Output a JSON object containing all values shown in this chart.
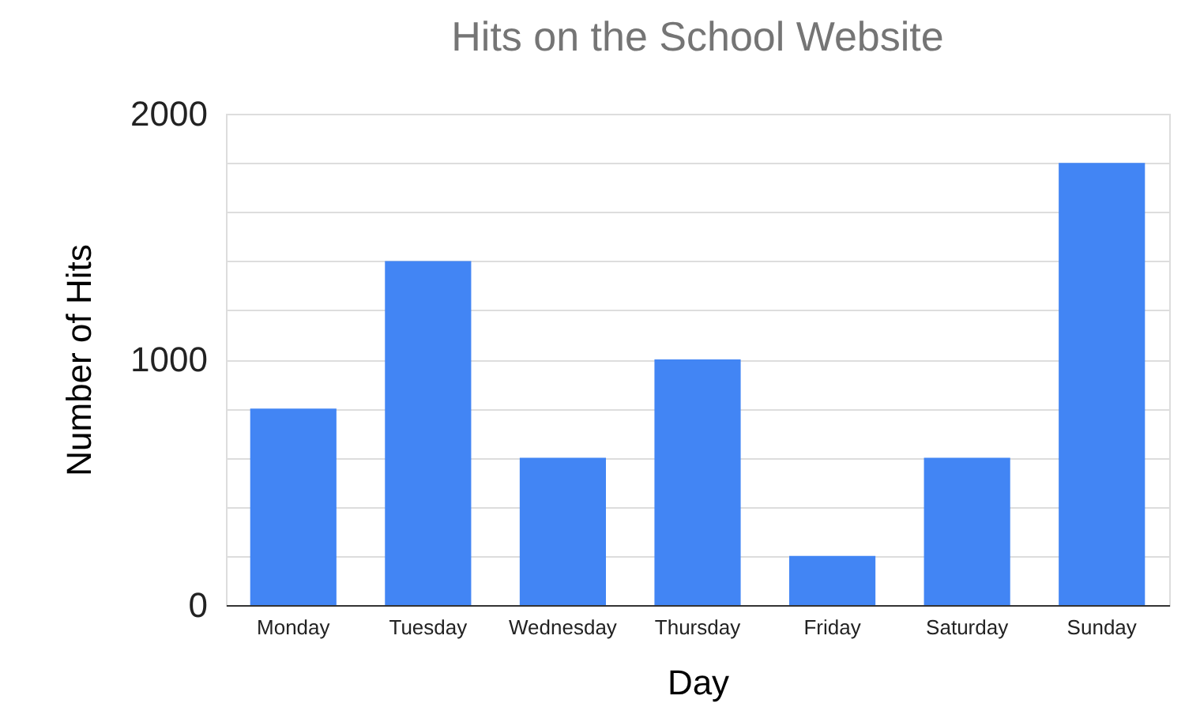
{
  "chart_data": {
    "type": "bar",
    "title": "Hits on the School Website",
    "xlabel": "Day",
    "ylabel": "Number of Hits",
    "categories": [
      "Monday",
      "Tuesday",
      "Wednesday",
      "Thursday",
      "Friday",
      "Saturday",
      "Sunday"
    ],
    "series": [
      {
        "color": "#4285f4",
        "values": [
          800,
          1400,
          600,
          1000,
          200,
          600,
          1800
        ]
      }
    ],
    "ylim": [
      0,
      2000
    ],
    "yticks": [
      0,
      {
        "value": 200,
        "label": null
      },
      {
        "value": 400,
        "label": null
      },
      {
        "value": 600,
        "label": null
      },
      {
        "value": 800,
        "label": null
      },
      1000,
      {
        "value": 1200,
        "label": null
      },
      {
        "value": 1400,
        "label": null
      },
      {
        "value": 1600,
        "label": null
      },
      {
        "value": 1800,
        "label": null
      },
      2000
    ],
    "grid": "y"
  }
}
